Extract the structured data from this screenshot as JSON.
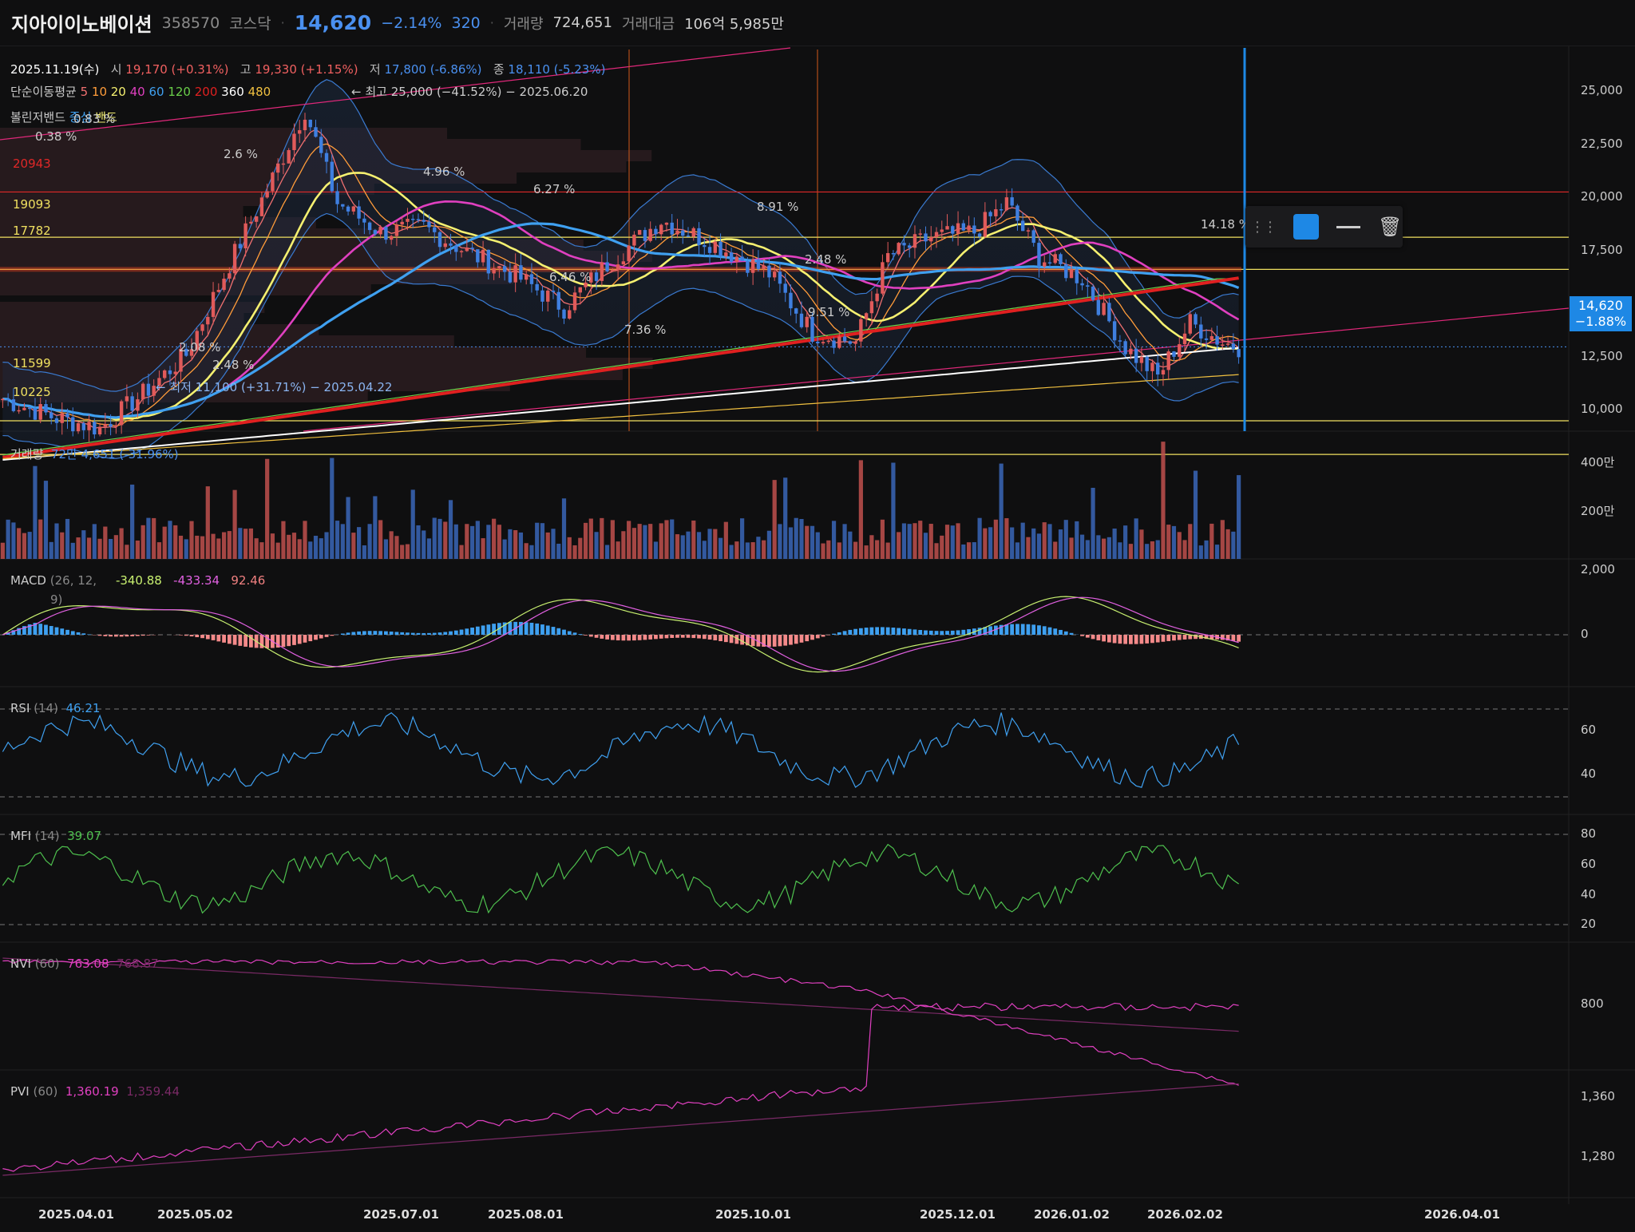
{
  "header": {
    "name": "지아이이노베이션",
    "code": "358570",
    "market": "코스닥",
    "price": "14,620",
    "change_pct": "−2.14%",
    "change_abs": "320",
    "volume_label": "거래량",
    "volume": "724,651",
    "amount_label": "거래대금",
    "amount": "106억 5,985만"
  },
  "info_line": {
    "date": "2025.11.19(수)",
    "open_label": "시",
    "open": "19,170 (+0.31%)",
    "high_label": "고",
    "high": "19,330 (+1.15%)",
    "low_label": "저",
    "low": "17,800 (-6.86%)",
    "close_label": "종",
    "close": "18,110 (-5.23%)"
  },
  "ma_legend": {
    "label": "단순이동평균",
    "periods": [
      "5",
      "10",
      "20",
      "40",
      "60",
      "120",
      "200",
      "360",
      "480"
    ],
    "colors": [
      "#f07070",
      "#ff9c3a",
      "#f5f070",
      "#e040c0",
      "#3fa0f0",
      "#6acf4a",
      "#e02020",
      "#ffffff",
      "#f0c040"
    ]
  },
  "bollinger": {
    "label": "볼린저밴드",
    "mid": "중심",
    "band": "밴드"
  },
  "annotations": {
    "high_note": "← 최고 25,000 (−41.52%) − 2025.06.20",
    "low_note": "← 최저 11,100 (+31.71%) − 2025.04.22"
  },
  "hlines": [
    {
      "label": "20943",
      "value": 20943,
      "color": "#e02828"
    },
    {
      "label": "19093",
      "value": 19093,
      "color": "#f0e060"
    },
    {
      "label": "17782",
      "value": 17782,
      "color": "#f0e060"
    },
    {
      "label": "11599",
      "value": 11599,
      "color": "#f0e060"
    },
    {
      "label": "10225",
      "value": 10225,
      "color": "#f0e060"
    }
  ],
  "pct_labels": [
    "0.38 %",
    "0.83 %",
    "2.6 %",
    "4.96 %",
    "6.27 %",
    "6.46 %",
    "8.91 %",
    "2.48 %",
    "9.51 %",
    "7.36 %",
    "2.08 %",
    "2.48 %",
    "14.18 %"
  ],
  "price_axis": {
    "ticks": [
      "25,000",
      "22,500",
      "20,000",
      "17,500",
      "12,500",
      "10,000"
    ],
    "current": "14,620",
    "current_pct": "−1.88%"
  },
  "volume_panel": {
    "label": "거래량",
    "value": "72만 4,651",
    "pct": "(-31.96%)",
    "ticks": [
      "400만",
      "200만"
    ]
  },
  "macd_panel": {
    "label": "MACD",
    "params": "(26, 12,",
    "params2": "9)",
    "v1": "-340.88",
    "v2": "-433.34",
    "v3": "92.46",
    "ticks": [
      "2,000",
      "0"
    ]
  },
  "rsi_panel": {
    "label": "RSI",
    "params": "(14)",
    "value": "46.21",
    "ticks": [
      "60",
      "40"
    ]
  },
  "mfi_panel": {
    "label": "MFI",
    "params": "(14)",
    "value": "39.07",
    "ticks": [
      "80",
      "60",
      "40",
      "20"
    ]
  },
  "nvi_panel": {
    "label": "NVI",
    "params": "(60)",
    "v1": "763.08",
    "v2": "768.87",
    "ticks": [
      "800"
    ]
  },
  "pvi_panel": {
    "label": "PVI",
    "params": "(60)",
    "v1": "1,360.19",
    "v2": "1,359.44",
    "ticks": [
      "1,360",
      "1,280"
    ]
  },
  "time_axis": [
    "2025.04.01",
    "2025.05.02",
    "2025.07.01",
    "2025.08.01",
    "2025.10.01",
    "2025.12.01",
    "2026.01.02",
    "2026.02.02",
    "2026.04.01"
  ],
  "toolbar": {
    "color": "#1e88e5",
    "drag_icon": "drag-handle-icon",
    "line_icon": "line-style-icon",
    "delete_icon": "trash-icon"
  },
  "colors": {
    "up": "#e05a5a",
    "down": "#3f7fe0",
    "accent": "#1e88e5",
    "bg": "#0f0f10"
  }
}
